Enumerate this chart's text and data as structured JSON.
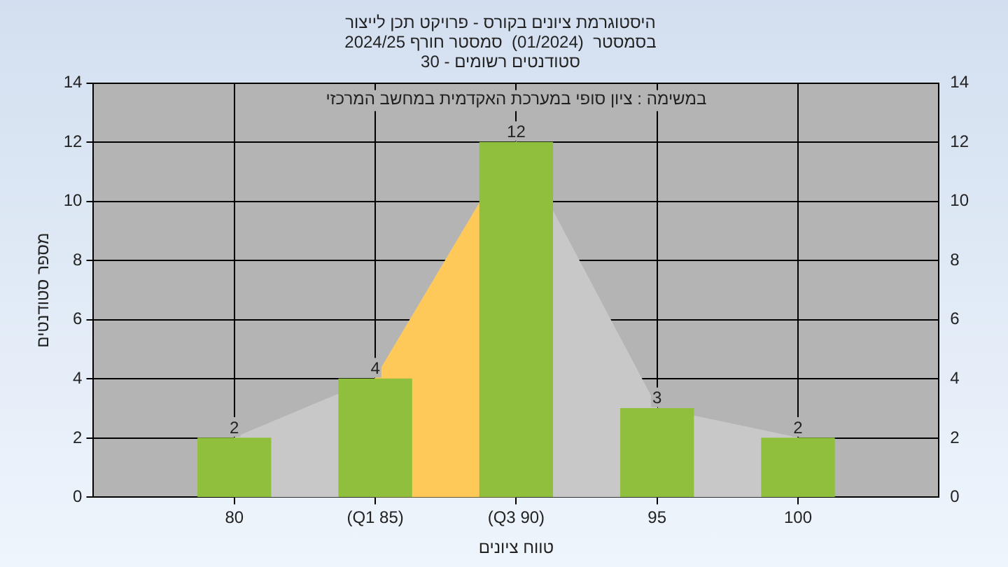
{
  "chart_data": {
    "type": "bar",
    "title": "היסטוגרמת ציונים בקורס - פרויקט תכן לייצור",
    "subtitle": "בסמסטר  (01/2024)  סמסטר חורף 2024/25\nסטודנטים רשומים - 30",
    "xlabel": "טווח ציונים",
    "ylabel": "מספר סטודנטים",
    "categories": [
      "80",
      "(Q1 85)",
      "(Q3 90)",
      "95",
      "100"
    ],
    "series": [
      {
        "type": "area",
        "axis": "y2",
        "color": "#c8c8c8",
        "values": [
          2,
          4,
          12,
          3,
          2
        ]
      },
      {
        "type": "area",
        "color": "#ffc95a",
        "values": [
          null,
          4,
          12,
          null,
          null
        ]
      },
      {
        "color": "#8fbf3c",
        "values": [
          2,
          4,
          12,
          3,
          2
        ],
        "value_labels": [
          "2",
          "4",
          "12",
          "3",
          "2"
        ]
      }
    ],
    "ylim": [
      0,
      14
    ],
    "yticks": [
      0,
      2,
      4,
      6,
      8,
      10,
      12,
      14
    ],
    "y2lim": [
      0,
      14
    ],
    "y2ticks": [
      0,
      2,
      4,
      6,
      8,
      10,
      12,
      14
    ],
    "grid": true,
    "legend": false,
    "annotations": [
      "במשימה : ציון סופי במערכת האקדמית במחשב המרכזי"
    ]
  }
}
